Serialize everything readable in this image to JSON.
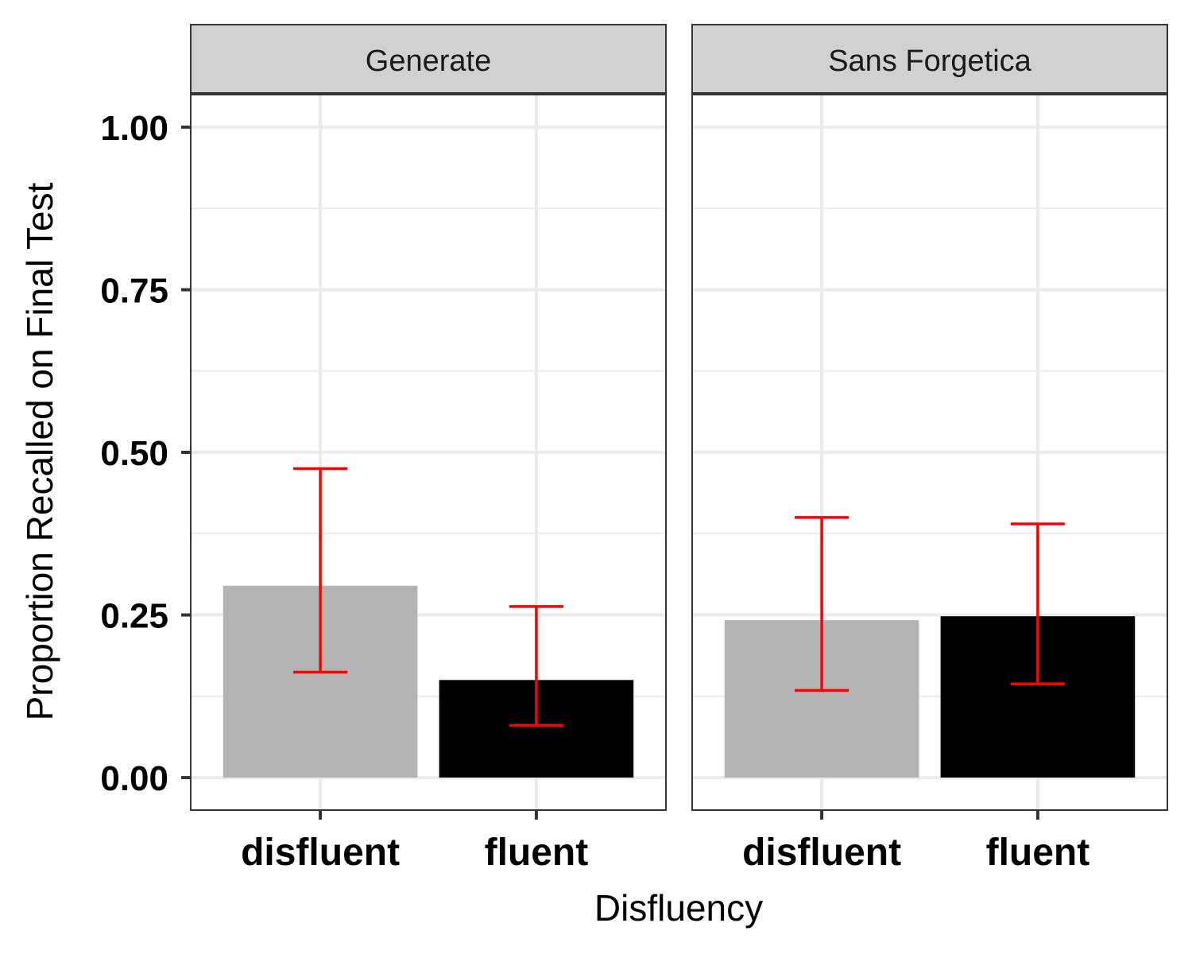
{
  "chart_data": {
    "type": "bar",
    "xlabel": "Disfluency",
    "ylabel": "Proportion Recalled on Final Test",
    "ylim": [
      -0.05,
      1.05
    ],
    "yticks": [
      "0.00",
      "0.25",
      "0.50",
      "0.75",
      "1.00"
    ],
    "ytick_values": [
      0,
      0.25,
      0.5,
      0.75,
      1.0
    ],
    "categories": [
      "disfluent",
      "fluent"
    ],
    "colors": {
      "disfluent": "#b3b3b3",
      "fluent": "#000000",
      "errorbar": "#ff0000"
    },
    "grid": true,
    "panels": [
      {
        "name": "Generate",
        "values": [
          0.295,
          0.15
        ],
        "error_low": [
          0.162,
          0.08
        ],
        "error_high": [
          0.475,
          0.263
        ]
      },
      {
        "name": "Sans Forgetica",
        "values": [
          0.242,
          0.248
        ],
        "error_low": [
          0.134,
          0.144
        ],
        "error_high": [
          0.4,
          0.39
        ]
      }
    ]
  }
}
